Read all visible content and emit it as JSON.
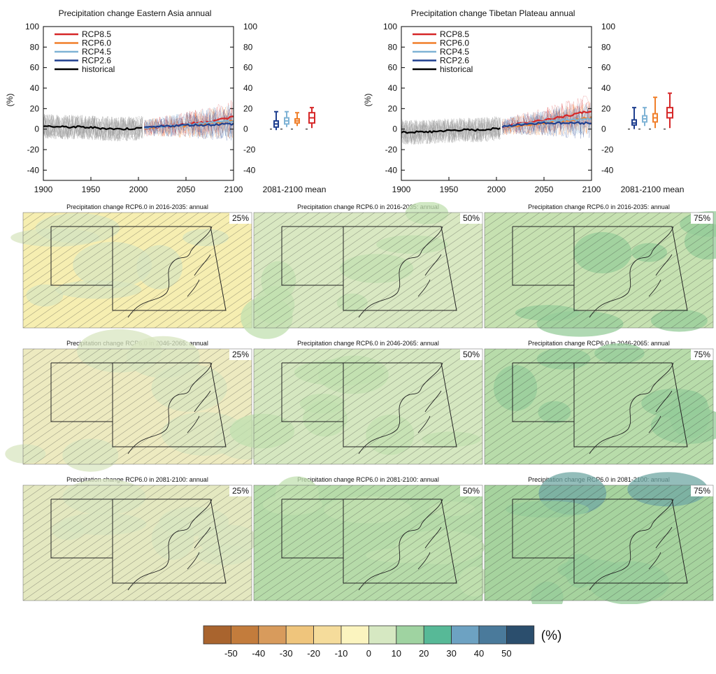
{
  "chart_data": [
    {
      "type": "line",
      "title": "Precipitation change Eastern Asia annual",
      "ylabel": "(%)",
      "xlim": [
        1900,
        2100
      ],
      "ylim": [
        -50,
        100
      ],
      "x_ticks": [
        1900,
        1950,
        2000,
        2050,
        2100
      ],
      "y_ticks": [
        -40,
        -20,
        0,
        20,
        40,
        60,
        80,
        100
      ],
      "legend_position": "top-left",
      "box_label": "2081-2100 mean",
      "series": [
        {
          "name": "RCP8.5",
          "color": "#d62728",
          "x": [
            2006,
            2030,
            2050,
            2070,
            2090,
            2100
          ],
          "values": [
            1,
            3,
            5,
            7,
            10,
            12
          ]
        },
        {
          "name": "RCP6.0",
          "color": "#f07f2a",
          "x": [
            2006,
            2030,
            2050,
            2070,
            2090,
            2100
          ],
          "values": [
            1,
            3,
            3,
            5,
            7,
            8
          ]
        },
        {
          "name": "RCP4.5",
          "color": "#7fb3d5",
          "x": [
            2006,
            2030,
            2050,
            2070,
            2090,
            2100
          ],
          "values": [
            1,
            3,
            4,
            6,
            7,
            8
          ]
        },
        {
          "name": "RCP2.6",
          "color": "#1f3f8f",
          "x": [
            2006,
            2030,
            2050,
            2070,
            2090,
            2100
          ],
          "values": [
            1,
            3,
            4,
            4,
            5,
            5
          ]
        },
        {
          "name": "historical",
          "color": "#000000",
          "x": [
            1900,
            1920,
            1940,
            1960,
            1980,
            2005
          ],
          "values": [
            3,
            2,
            2,
            1,
            0,
            1
          ]
        }
      ],
      "boxes_2081_2100": [
        {
          "name": "RCP2.6",
          "color": "#1f3f8f",
          "min": -1,
          "q1": 2,
          "median": 5,
          "q3": 8,
          "max": 17
        },
        {
          "name": "RCP4.5",
          "color": "#7fb3d5",
          "min": 2,
          "q1": 5,
          "median": 8,
          "q3": 11,
          "max": 17
        },
        {
          "name": "RCP6.0",
          "color": "#f07f2a",
          "min": 3,
          "q1": 6,
          "median": 8,
          "q3": 10,
          "max": 16
        },
        {
          "name": "RCP8.5",
          "color": "#d62728",
          "min": 1,
          "q1": 6,
          "median": 11,
          "q3": 16,
          "max": 21
        }
      ]
    },
    {
      "type": "line",
      "title": "Precipitation change Tibetan Plateau annual",
      "ylabel": "(%)",
      "xlim": [
        1900,
        2100
      ],
      "ylim": [
        -50,
        100
      ],
      "x_ticks": [
        1900,
        1950,
        2000,
        2050,
        2100
      ],
      "y_ticks": [
        -40,
        -20,
        0,
        20,
        40,
        60,
        80,
        100
      ],
      "legend_position": "top-left",
      "box_label": "2081-2100 mean",
      "series": [
        {
          "name": "RCP8.5",
          "color": "#d62728",
          "x": [
            2006,
            2030,
            2050,
            2070,
            2090,
            2100
          ],
          "values": [
            2,
            6,
            9,
            12,
            16,
            18
          ]
        },
        {
          "name": "RCP6.0",
          "color": "#f07f2a",
          "x": [
            2006,
            2030,
            2050,
            2070,
            2090,
            2100
          ],
          "values": [
            2,
            4,
            6,
            8,
            10,
            11
          ]
        },
        {
          "name": "RCP4.5",
          "color": "#7fb3d5",
          "x": [
            2006,
            2030,
            2050,
            2070,
            2090,
            2100
          ],
          "values": [
            2,
            5,
            7,
            9,
            10,
            10
          ]
        },
        {
          "name": "RCP2.6",
          "color": "#1f3f8f",
          "x": [
            2006,
            2030,
            2050,
            2070,
            2090,
            2100
          ],
          "values": [
            2,
            5,
            6,
            6,
            6,
            6
          ]
        },
        {
          "name": "historical",
          "color": "#000000",
          "x": [
            1900,
            1920,
            1940,
            1960,
            1980,
            2005
          ],
          "values": [
            -3,
            -3,
            -2,
            -1,
            -1,
            1
          ]
        }
      ],
      "boxes_2081_2100": [
        {
          "name": "RCP2.6",
          "color": "#1f3f8f",
          "min": 0,
          "q1": 4,
          "median": 6,
          "q3": 9,
          "max": 21
        },
        {
          "name": "RCP4.5",
          "color": "#7fb3d5",
          "min": 3,
          "q1": 7,
          "median": 10,
          "q3": 13,
          "max": 21
        },
        {
          "name": "RCP6.0",
          "color": "#f07f2a",
          "min": 1,
          "q1": 7,
          "median": 11,
          "q3": 15,
          "max": 31
        },
        {
          "name": "RCP8.5",
          "color": "#d62728",
          "min": 1,
          "q1": 11,
          "median": 16,
          "q3": 21,
          "max": 35
        }
      ]
    },
    {
      "type": "heatmap",
      "maps": [
        {
          "title": "Precipitation change RCP6.0 in 2016-2035: annual",
          "percentile": "25%",
          "fill": "#f6eeb1",
          "hatched": true
        },
        {
          "title": "Precipitation change RCP6.0 in 2016-2035: annual",
          "percentile": "50%",
          "fill": "#d9e8c2",
          "hatched": true
        },
        {
          "title": "Precipitation change RCP6.0 in 2016-2035: annual",
          "percentile": "75%",
          "fill": "#c6e1b1",
          "hatched": true
        },
        {
          "title": "Precipitation change RCP6.0 in 2046-2065: annual",
          "percentile": "25%",
          "fill": "#edeac0",
          "hatched": true
        },
        {
          "title": "Precipitation change RCP6.0 in 2046-2065: annual",
          "percentile": "50%",
          "fill": "#d5e7c0",
          "hatched": true
        },
        {
          "title": "Precipitation change RCP6.0 in 2046-2065: annual",
          "percentile": "75%",
          "fill": "#b8dcaa",
          "hatched": true
        },
        {
          "title": "Precipitation change RCP6.0 in 2081-2100: annual",
          "percentile": "25%",
          "fill": "#e4e8c0",
          "hatched": true
        },
        {
          "title": "Precipitation change RCP6.0 in 2081-2100: annual",
          "percentile": "50%",
          "fill": "#b6dba9",
          "hatched": true
        },
        {
          "title": "Precipitation change RCP6.0 in 2081-2100: annual",
          "percentile": "75%",
          "fill": "#a6d39e",
          "hatched": true
        }
      ],
      "colorbar": {
        "unit": "(%)",
        "labels": [
          "-50",
          "-40",
          "-30",
          "-20",
          "-10",
          "0",
          "10",
          "20",
          "30",
          "40",
          "50"
        ],
        "colors": [
          "#a9642e",
          "#c37c3c",
          "#d89b5c",
          "#efc57c",
          "#f5dc9b",
          "#fbf4bf",
          "#d6e8c2",
          "#9fd3a1",
          "#57b997",
          "#6da2c2",
          "#4a7a9b",
          "#2b4e6d"
        ]
      }
    }
  ]
}
